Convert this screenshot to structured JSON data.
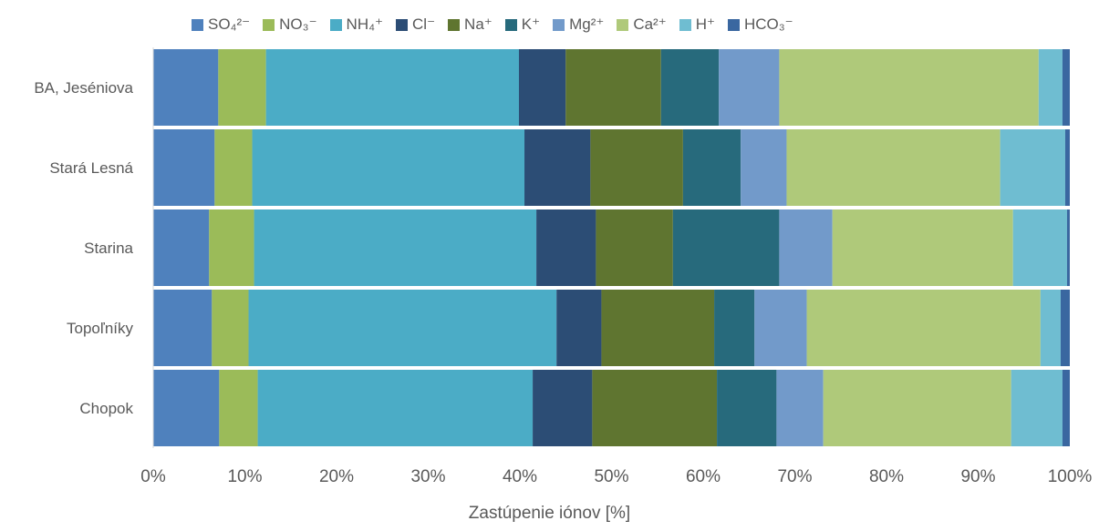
{
  "chart_data": {
    "type": "bar",
    "orientation": "horizontal",
    "stacked": "percent",
    "title": "",
    "xlabel": "Zastúpenie iónov [%]",
    "ylabel": "",
    "xlim": [
      0,
      100
    ],
    "x_ticks": [
      "0%",
      "10%",
      "20%",
      "30%",
      "40%",
      "50%",
      "60%",
      "70%",
      "80%",
      "90%",
      "100%"
    ],
    "grid": false,
    "legend_position": "top",
    "categories": [
      "BA, Jeséniova",
      "Stará Lesná",
      "Starina",
      "Topoľníky",
      "Chopok"
    ],
    "series": [
      {
        "name": "SO₄²⁻",
        "color": "#4F81BD",
        "values": [
          7.1,
          6.7,
          6.1,
          6.4,
          7.2
        ]
      },
      {
        "name": "NO₃⁻",
        "color": "#9BBB59",
        "values": [
          5.2,
          4.1,
          4.9,
          4.0,
          4.2
        ]
      },
      {
        "name": "NH₄⁺",
        "color": "#4BACC6",
        "values": [
          27.6,
          29.7,
          30.8,
          33.6,
          30.0
        ]
      },
      {
        "name": "Cl⁻",
        "color": "#2C4D75",
        "values": [
          5.1,
          7.2,
          6.5,
          4.9,
          6.5
        ]
      },
      {
        "name": "Na⁺",
        "color": "#5F7530",
        "values": [
          10.4,
          10.1,
          8.4,
          12.3,
          13.6
        ]
      },
      {
        "name": "K⁺",
        "color": "#276A7C",
        "values": [
          6.3,
          6.3,
          11.6,
          4.4,
          6.5
        ]
      },
      {
        "name": "Mg²⁺",
        "color": "#729ACA",
        "values": [
          6.6,
          5.0,
          5.8,
          5.7,
          5.1
        ]
      },
      {
        "name": "Ca²⁺",
        "color": "#AFC97A",
        "values": [
          28.3,
          23.3,
          19.7,
          25.5,
          20.5
        ]
      },
      {
        "name": "H⁺",
        "color": "#6FBDD1",
        "values": [
          2.6,
          7.1,
          5.9,
          2.2,
          5.6
        ]
      },
      {
        "name": "HCO₃⁻",
        "color": "#3A67A0",
        "values": [
          0.8,
          0.5,
          0.3,
          1.0,
          0.8
        ]
      }
    ]
  }
}
